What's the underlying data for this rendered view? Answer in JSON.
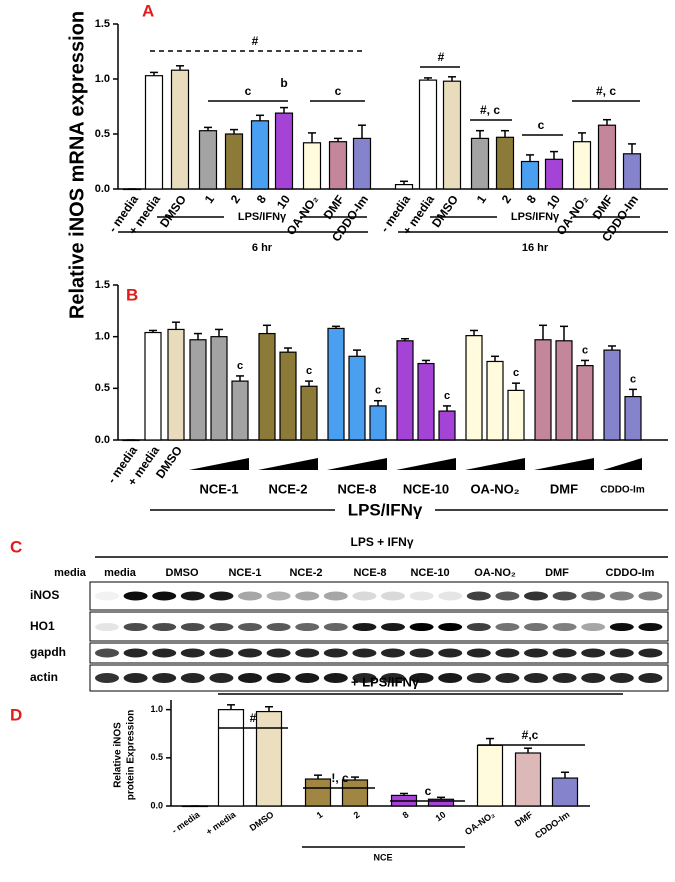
{
  "chart_data": [
    {
      "type": "bar",
      "panel": "A",
      "y_label": "Relative iNOS mRNA expression",
      "categories": [
        "- media",
        "+ media",
        "DMSO",
        "1",
        "2",
        "8",
        "10",
        "OA-NO₂",
        "DMF",
        "CDDO-Im",
        "- media",
        "+ media",
        "DMSO",
        "1",
        "2",
        "8",
        "10",
        "OA-NO₂",
        "DMF",
        "CDDO-Im"
      ],
      "values": [
        0,
        1.03,
        1.08,
        0.53,
        0.5,
        0.62,
        0.69,
        0.42,
        0.43,
        0.46,
        0.04,
        0.99,
        0.98,
        0.46,
        0.47,
        0.25,
        0.27,
        0.43,
        0.58,
        0.32
      ],
      "errors": [
        0,
        0.03,
        0.04,
        0.03,
        0.04,
        0.05,
        0.05,
        0.09,
        0.03,
        0.12,
        0.03,
        0.02,
        0.04,
        0.07,
        0.06,
        0.06,
        0.07,
        0.08,
        0.05,
        0.09
      ],
      "colors": [
        "#ffffff",
        "#ffffff",
        "#e8dcbc",
        "#a3a3a3",
        "#8c7a38",
        "#4a9ff0",
        "#a443d6",
        "#fffbdc",
        "#c4869a",
        "#8583cc",
        "#ffffff",
        "#ffffff",
        "#e8dcbc",
        "#a3a3a3",
        "#8c7a38",
        "#4a9ff0",
        "#a443d6",
        "#fffbdc",
        "#c4869a",
        "#8583cc"
      ],
      "ylim": [
        0,
        1.5
      ],
      "yticks": [
        {
          "value": 0,
          "label": "0.0"
        },
        {
          "value": 0.5,
          "label": "0.5"
        },
        {
          "value": 1,
          "label": "1.0"
        },
        {
          "value": 1.5,
          "label": "1.5"
        }
      ],
      "annotations": [
        "#",
        "c",
        "b",
        "c",
        "#",
        "#, c",
        "c",
        "#, c"
      ],
      "group_labels": [
        "LPS/IFNγ",
        "LPS/IFNγ"
      ],
      "time_labels": [
        "6 hr",
        "16 hr"
      ]
    },
    {
      "type": "bar",
      "panel": "B",
      "categories": [
        "- media",
        "+ media",
        "DMSO",
        null,
        null,
        null,
        null,
        null,
        null,
        null,
        null,
        null,
        null,
        null,
        null,
        null,
        null,
        null,
        null,
        null,
        null,
        null,
        null
      ],
      "values": [
        0,
        1.04,
        1.07,
        0.97,
        1.0,
        0.57,
        1.03,
        0.85,
        0.52,
        1.08,
        0.81,
        0.33,
        0.96,
        0.74,
        0.28,
        1.01,
        0.76,
        0.48,
        0.97,
        0.96,
        0.72,
        0.87,
        0.42
      ],
      "errors": [
        0,
        0.02,
        0.07,
        0.06,
        0.07,
        0.05,
        0.08,
        0.04,
        0.05,
        0.02,
        0.06,
        0.05,
        0.02,
        0.03,
        0.05,
        0.05,
        0.05,
        0.07,
        0.14,
        0.14,
        0.05,
        0.04,
        0.07
      ],
      "colors": [
        "#ffffff",
        "#ffffff",
        "#e8dcbc",
        "#a3a3a3",
        "#a3a3a3",
        "#a3a3a3",
        "#8c7a38",
        "#8c7a38",
        "#8c7a38",
        "#4a9ff0",
        "#4a9ff0",
        "#4a9ff0",
        "#a443d6",
        "#a443d6",
        "#a443d6",
        "#fffbdc",
        "#fffbdc",
        "#fffbdc",
        "#c4869a",
        "#c4869a",
        "#c4869a",
        "#8583cc",
        "#8583cc"
      ],
      "ylim": [
        0,
        1.5
      ],
      "yticks": [
        {
          "value": 0,
          "label": "0.0"
        },
        {
          "value": 0.5,
          "label": "0.5"
        },
        {
          "value": 1,
          "label": "1.0"
        },
        {
          "value": 1.5,
          "label": "1.5"
        }
      ],
      "annotations": [
        "c",
        "c",
        "c",
        "c",
        "c",
        "c",
        "c"
      ],
      "group_labels": [
        "NCE-1",
        "NCE-2",
        "NCE-8",
        "NCE-10",
        "OA-NO₂",
        "DMF",
        "CDDO-Im"
      ],
      "treatment_label": "LPS/IFNγ"
    },
    {
      "type": "bar",
      "panel": "D",
      "y_label": [
        "Relative iNOS",
        "protein Expression"
      ],
      "categories": [
        "- media",
        "+ media",
        "DMSO",
        "1",
        "2",
        "8",
        "10",
        "OA-NO₂",
        "DMF",
        "CDDO-Im"
      ],
      "values": [
        0,
        1.0,
        0.98,
        0.28,
        0.27,
        0.11,
        0.07,
        0.63,
        0.55,
        0.29
      ],
      "errors": [
        0,
        0.05,
        0.05,
        0.04,
        0.03,
        0.02,
        0.02,
        0.07,
        0.05,
        0.06
      ],
      "colors": [
        "#ffffff",
        "#ffffff",
        "#ebdfc0",
        "#a08642",
        "#a08642",
        "#a443d6",
        "#a443d6",
        "#fffbdc",
        "#dcb8b8",
        "#8583cc"
      ],
      "ylim": [
        0,
        1.1
      ],
      "yticks": [
        {
          "value": 0,
          "label": "0.0"
        },
        {
          "value": 0.5,
          "label": "0.5"
        },
        {
          "value": 1,
          "label": "1.0"
        }
      ],
      "annotations": [
        "#",
        "!, c",
        "c",
        "#,c"
      ],
      "treatment_label": "+ LPS/IFNγ",
      "group_label": "NCE"
    }
  ],
  "blot": {
    "panel": "C",
    "header": "LPS + IFNγ",
    "lanes": [
      "media",
      "media",
      "DMSO",
      "NCE-1",
      "NCE-2",
      "NCE-8",
      "NCE-10",
      "OA-NO₂",
      "DMF",
      "CDDO-Im"
    ],
    "rows": [
      "iNOS",
      "HO1",
      "gapdh",
      "actin"
    ]
  }
}
